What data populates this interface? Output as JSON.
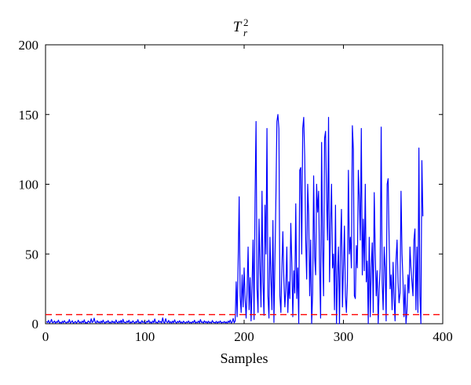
{
  "chart_data": {
    "type": "line",
    "title": {
      "base": "T",
      "subscript": "r",
      "superscript": "2"
    },
    "xlabel": "Samples",
    "ylabel": "",
    "xlim": [
      0,
      400
    ],
    "ylim": [
      0,
      200
    ],
    "x_ticks": [
      "0",
      "100",
      "200",
      "300",
      "400"
    ],
    "y_ticks": [
      "0",
      "50",
      "100",
      "150",
      "200"
    ],
    "grid": false,
    "legend": "none",
    "colors": {
      "series": "#0000ff",
      "threshold": "#ff0000"
    },
    "threshold": {
      "value": 6.5,
      "style": "dashed"
    },
    "series": [
      {
        "x_start": 1,
        "x_step": 1,
        "values": [
          1.6,
          0.8,
          2.4,
          0.5,
          1.2,
          3.1,
          0.7,
          1.0,
          2.0,
          0.4,
          1.5,
          0.9,
          2.6,
          0.6,
          1.1,
          0.3,
          1.8,
          0.7,
          2.2,
          1.0,
          0.5,
          1.4,
          0.8,
          3.0,
          0.6,
          1.2,
          2.1,
          0.4,
          0.9,
          1.7,
          0.5,
          1.1,
          2.5,
          0.7,
          1.3,
          0.6,
          1.9,
          0.8,
          2.8,
          0.5,
          1.0,
          0.4,
          2.0,
          1.2,
          0.7,
          3.5,
          0.9,
          1.5,
          4.0,
          1.1,
          0.6,
          2.2,
          0.8,
          1.4,
          0.5,
          1.9,
          0.7,
          2.6,
          1.0,
          0.4,
          1.6,
          0.9,
          2.3,
          0.6,
          1.2,
          0.5,
          2.0,
          0.8,
          1.5,
          0.4,
          2.7,
          1.0,
          0.6,
          1.8,
          0.7,
          2.4,
          0.5,
          3.2,
          0.8,
          1.1,
          0.6,
          1.9,
          0.9,
          2.5,
          0.4,
          1.3,
          0.7,
          2.1,
          1.0,
          0.5,
          1.6,
          0.8,
          2.9,
          0.6,
          1.2,
          0.4,
          2.2,
          0.9,
          1.4,
          0.7,
          0.5,
          1.8,
          1.0,
          2.6,
          0.6,
          1.3,
          0.4,
          2.0,
          0.8,
          3.4,
          0.7,
          1.1,
          0.5,
          2.3,
          0.9,
          1.6,
          0.6,
          4.2,
          1.0,
          0.5,
          3.6,
          1.2,
          0.8,
          2.4,
          0.6,
          1.5,
          0.4,
          1.9,
          0.7,
          2.8,
          1.0,
          0.5,
          1.7,
          0.8,
          2.2,
          0.6,
          1.3,
          0.4,
          1.8,
          0.9,
          0.5,
          1.4,
          0.7,
          2.0,
          0.6,
          1.1,
          0.4,
          1.6,
          0.8,
          2.5,
          0.5,
          1.2,
          0.7,
          1.9,
          0.6,
          3.0,
          0.9,
          1.3,
          0.5,
          2.1,
          0.8,
          1.5,
          0.4,
          1.8,
          0.7,
          1.2,
          0.5,
          2.3,
          0.9,
          1.0,
          0.6,
          1.7,
          0.4,
          1.4,
          0.8,
          2.0,
          0.5,
          1.1,
          0.7,
          1.6,
          0.6,
          1.3,
          0.4,
          1.9,
          0.8,
          2.6,
          0.5,
          1.2,
          3.8,
          0.7,
          2.0,
          30,
          5,
          45,
          91,
          20,
          8,
          35,
          12,
          40,
          18,
          4,
          24,
          55,
          10,
          33,
          2,
          28,
          60,
          3,
          90,
          145,
          25,
          8,
          75,
          40,
          12,
          95,
          30,
          6,
          85,
          50,
          140,
          20,
          4,
          62,
          33,
          10,
          74,
          1,
          45,
          90,
          145,
          150,
          140,
          20,
          8,
          40,
          66,
          32,
          12,
          25,
          55,
          8,
          30,
          18,
          72,
          44,
          5,
          38,
          22,
          86,
          18,
          40,
          0,
          110,
          112,
          50,
          140,
          148,
          120,
          60,
          32,
          100,
          78,
          20,
          60,
          0,
          22,
          106,
          48,
          35,
          100,
          80,
          95,
          40,
          4,
          130,
          55,
          20,
          133,
          138,
          90,
          60,
          148,
          30,
          70,
          100,
          40,
          50,
          10,
          85,
          0,
          35,
          55,
          0,
          55,
          82,
          12,
          40,
          70,
          20,
          8,
          30,
          110,
          50,
          62,
          40,
          142,
          125,
          20,
          18,
          56,
          40,
          110,
          90,
          60,
          140,
          35,
          75,
          38,
          100,
          30,
          45,
          0,
          62,
          5,
          40,
          58,
          8,
          94,
          52,
          20,
          38,
          0,
          25,
          40,
          141,
          30,
          10,
          55,
          40,
          2,
          100,
          104,
          60,
          25,
          35,
          10,
          44,
          18,
          2,
          46,
          60,
          30,
          15,
          22,
          95,
          50,
          30,
          5,
          28,
          0,
          10,
          35,
          22,
          55,
          40,
          30,
          20,
          60,
          68,
          10,
          55,
          8,
          126,
          20,
          0,
          117,
          77
        ]
      }
    ]
  }
}
